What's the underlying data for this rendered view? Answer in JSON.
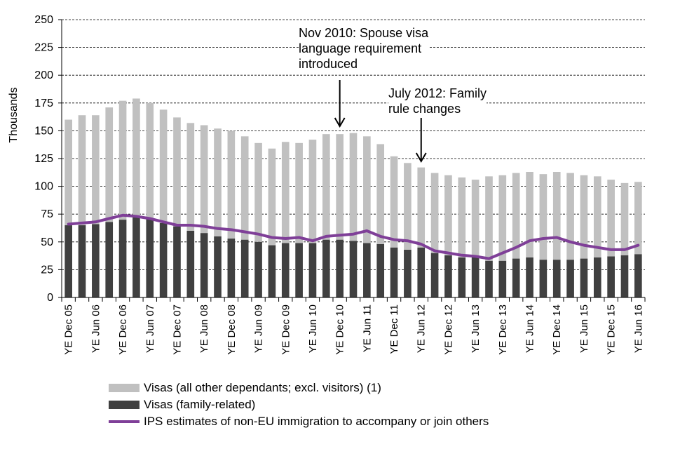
{
  "chart_data": {
    "type": "bar",
    "stacked": true,
    "ylabel": "Thousands",
    "ylim": [
      0,
      250
    ],
    "yticks": [
      0,
      25,
      50,
      75,
      100,
      125,
      150,
      175,
      200,
      225,
      250
    ],
    "grid": "horizontal dashed",
    "categories": [
      "Dec 05",
      "Mar 06",
      "Jun 06",
      "Sep 06",
      "Dec 06",
      "Mar 07",
      "Jun 07",
      "Sep 07",
      "Dec 07",
      "Mar 08",
      "Jun 08",
      "Sep 08",
      "Dec 08",
      "Mar 09",
      "Jun 09",
      "Sep 09",
      "Dec 09",
      "Mar 10",
      "Jun 10",
      "Sep 10",
      "Dec 10",
      "Mar 11",
      "Jun 11",
      "Sep 11",
      "Dec 11",
      "Mar 12",
      "Jun 12",
      "Sep 12",
      "Dec 12",
      "Mar 13",
      "Jun 13",
      "Sep 13",
      "Dec 13",
      "Mar 14",
      "Jun 14",
      "Sep 14",
      "Dec 14",
      "Mar 15",
      "Jun 15",
      "Sep 15",
      "Dec 15",
      "Mar 16",
      "Jun 16"
    ],
    "x_tick_labels": [
      "YE Dec 05",
      "YE Jun 06",
      "YE Dec 06",
      "YE Jun 07",
      "YE Dec 07",
      "YE Jun 08",
      "YE Dec 08",
      "YE Jun 09",
      "YE Dec 09",
      "YE Jun 10",
      "YE Dec 10",
      "YE Jun 11",
      "YE Dec 11",
      "YE Jun 12",
      "YE Dec 12",
      "YE Jun 13",
      "YE Dec 13",
      "YE Jun 14",
      "YE Dec 14",
      "YE Jun 15",
      "YE Dec 15",
      "YE Jun 16"
    ],
    "series": [
      {
        "name": "Visas (family-related)",
        "kind": "bar",
        "color": "#404040",
        "values": [
          65,
          65,
          66,
          68,
          70,
          73,
          71,
          67,
          64,
          60,
          58,
          55,
          53,
          52,
          50,
          47,
          49,
          49,
          49,
          52,
          52,
          51,
          49,
          48,
          45,
          43,
          45,
          40,
          38,
          36,
          36,
          33,
          33,
          35,
          36,
          34,
          34,
          34,
          35,
          36,
          37,
          38,
          39
        ]
      },
      {
        "name": "Visas (all other dependants; excl. visitors) (1)",
        "kind": "bar",
        "color": "#c0c0c0",
        "values": [
          95,
          99,
          98,
          103,
          107,
          106,
          104,
          102,
          98,
          97,
          97,
          97,
          97,
          93,
          89,
          87,
          91,
          90,
          93,
          95,
          95,
          97,
          96,
          90,
          82,
          78,
          72,
          72,
          72,
          72,
          70,
          76,
          77,
          77,
          77,
          77,
          79,
          78,
          75,
          73,
          69,
          65,
          65
        ]
      },
      {
        "name": "IPS estimates of non-EU immigration to accompany or join others",
        "kind": "line",
        "color": "#7f3f98",
        "values": [
          66,
          67,
          68,
          71,
          74,
          73,
          71,
          68,
          65,
          65,
          64,
          62,
          61,
          59,
          57,
          54,
          53,
          54,
          51,
          55,
          56,
          57,
          60,
          55,
          52,
          51,
          48,
          42,
          40,
          38,
          37,
          35,
          40,
          45,
          51,
          53,
          54,
          50,
          47,
          45,
          43,
          43,
          47
        ]
      }
    ],
    "annotations": [
      {
        "text": "Nov 2010: Spouse visa language requirement introduced",
        "lines": [
          "Nov 2010: Spouse visa",
          "language requirement",
          "introduced"
        ],
        "arrow_category": "Dec 10"
      },
      {
        "text": "July 2012: Family rule changes",
        "lines": [
          "July 2012: Family",
          "rule changes"
        ],
        "arrow_category": "Jun 12"
      }
    ],
    "legend_position": "bottom-left"
  },
  "legend": [
    {
      "label": "Visas (all other dependants; excl. visitors) (1)",
      "color": "#c0c0c0",
      "kind": "bar"
    },
    {
      "label": "Visas (family-related)",
      "color": "#404040",
      "kind": "bar"
    },
    {
      "label": "IPS estimates of non-EU immigration to accompany or join others",
      "color": "#7f3f98",
      "kind": "line"
    }
  ]
}
